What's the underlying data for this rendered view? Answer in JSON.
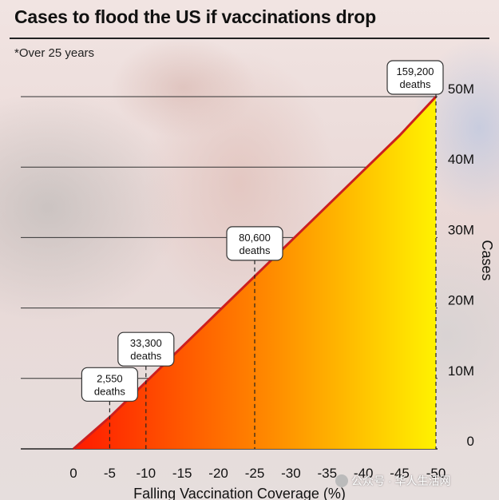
{
  "title": "Cases to flood the US if vaccinations drop",
  "subtitle": "*Over 25 years",
  "watermark": "公众号 · 华人生活网",
  "chart_data": {
    "type": "area",
    "x": [
      0,
      -5,
      -10,
      -15,
      -20,
      -25,
      -30,
      -35,
      -40,
      -45,
      -50
    ],
    "x_ticks": [
      0,
      -5,
      -10,
      -15,
      -20,
      -25,
      -30,
      -35,
      -40,
      -45,
      -50
    ],
    "x_tick_labels": [
      "0",
      "-5",
      "-10",
      "-15",
      "-20",
      "-25",
      "-30",
      "-35",
      "-40",
      "-45",
      "-50"
    ],
    "y": [
      0,
      4.5,
      9.5,
      14.5,
      19.5,
      24.5,
      29.5,
      34.5,
      39.5,
      44.5,
      50
    ],
    "y_ticks": [
      0,
      10,
      20,
      30,
      40,
      50
    ],
    "y_tick_labels": [
      "0",
      "10M",
      "20M",
      "30M",
      "40M",
      "50M"
    ],
    "xlabel": "Falling Vaccination Coverage (%)",
    "ylabel": "Cases",
    "xlim": [
      0,
      -50
    ],
    "ylim": [
      0,
      50
    ],
    "grid": "horizontal",
    "y_axis_side": "right",
    "annotations": [
      {
        "x": -5,
        "value": "2,550",
        "unit": "deaths"
      },
      {
        "x": -10,
        "value": "33,300",
        "unit": "deaths"
      },
      {
        "x": -25,
        "value": "80,600",
        "unit": "deaths"
      },
      {
        "x": -50,
        "value": "159,200",
        "unit": "deaths"
      }
    ],
    "colors": {
      "line": "#cc1f1f",
      "fill_start": "#ff1a00",
      "fill_mid": "#ff8c00",
      "fill_end": "#fff200"
    }
  }
}
